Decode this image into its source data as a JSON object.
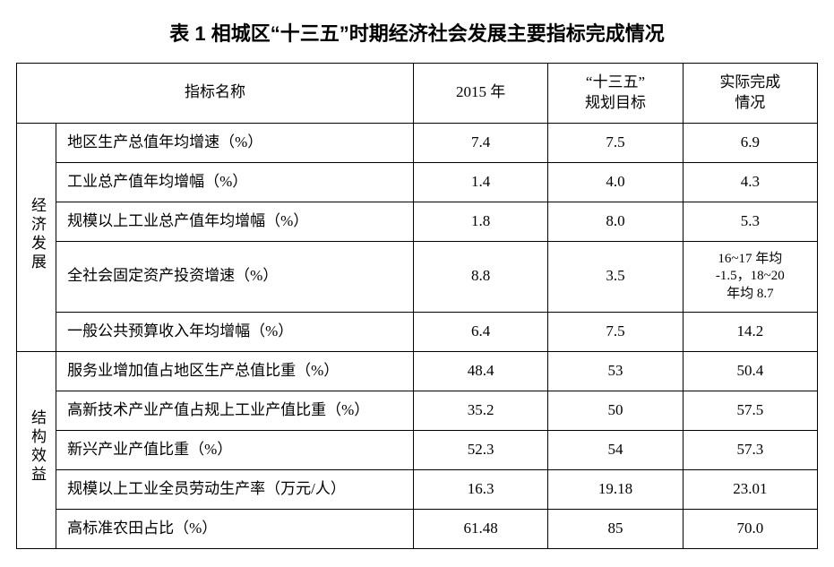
{
  "title": "表 1  相城区“十三五”时期经济社会发展主要指标完成情况",
  "headers": {
    "indicator": "指标名称",
    "y2015": "2015 年",
    "plan": "“十三五”\n规划目标",
    "actual": "实际完成\n情况"
  },
  "groups": [
    {
      "name": "经济发展",
      "rows": [
        {
          "label": "地区生产总值年均增速（%）",
          "y2015": "7.4",
          "plan": "7.5",
          "actual": "6.9"
        },
        {
          "label": "工业总产值年均增幅（%）",
          "y2015": "1.4",
          "plan": "4.0",
          "actual": "4.3"
        },
        {
          "label": "规模以上工业总产值年均增幅（%）",
          "y2015": "1.8",
          "plan": "8.0",
          "actual": "5.3"
        },
        {
          "label": "全社会固定资产投资增速（%）",
          "y2015": "8.8",
          "plan": "3.5",
          "actual": "16~17 年均\n-1.5，18~20\n年均 8.7",
          "actual_multiline": true
        },
        {
          "label": "一般公共预算收入年均增幅（%）",
          "y2015": "6.4",
          "plan": "7.5",
          "actual": "14.2"
        }
      ]
    },
    {
      "name": "结构效益",
      "rows": [
        {
          "label": "服务业增加值占地区生产总值比重（%）",
          "y2015": "48.4",
          "plan": "53",
          "actual": "50.4"
        },
        {
          "label": "高新技术产业产值占规上工业产值比重（%）",
          "y2015": "35.2",
          "plan": "50",
          "actual": "57.5"
        },
        {
          "label": "新兴产业产值比重（%）",
          "y2015": "52.3",
          "plan": "54",
          "actual": "57.3"
        },
        {
          "label": "规模以上工业全员劳动生产率（万元/人）",
          "y2015": "16.3",
          "plan": "19.18",
          "actual": "23.01"
        },
        {
          "label": "高标准农田占比（%）",
          "y2015": "61.48",
          "plan": "85",
          "actual": "70.0"
        }
      ]
    }
  ],
  "style": {
    "border_color": "#000000",
    "background_color": "#ffffff",
    "text_color": "#000000",
    "title_fontsize": 22,
    "cell_fontsize": 17,
    "multiline_fontsize": 15,
    "border_width": 1.5
  }
}
